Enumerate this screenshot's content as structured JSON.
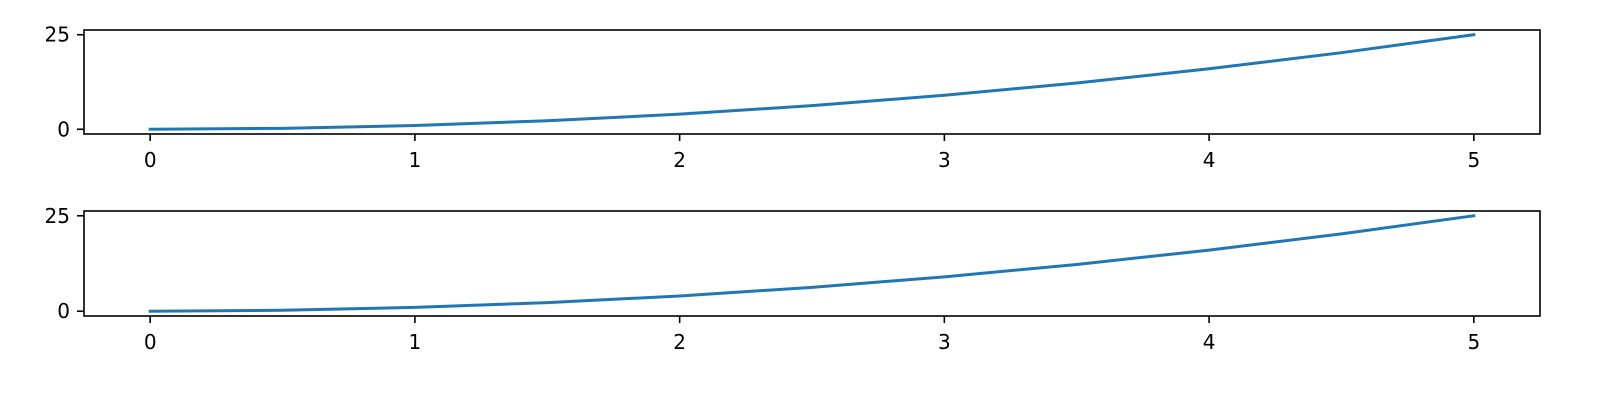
{
  "chart_data": [
    {
      "type": "line",
      "title": "",
      "xlabel": "",
      "ylabel": "",
      "xlim": [
        -0.25,
        5.25
      ],
      "ylim": [
        -1.25,
        26.25
      ],
      "xticks": [
        0,
        1,
        2,
        3,
        4,
        5
      ],
      "xtick_labels": [
        "0",
        "1",
        "2",
        "3",
        "4",
        "5"
      ],
      "yticks": [
        0,
        25
      ],
      "ytick_labels": [
        "0",
        "25"
      ],
      "grid": false,
      "legend": "none",
      "series": [
        {
          "color": "#1f77b4",
          "x": [
            0,
            0.5,
            1,
            1.5,
            2,
            2.5,
            3,
            3.5,
            4,
            4.5,
            5
          ],
          "y": [
            0,
            0.25,
            1,
            2.25,
            4,
            6.25,
            9,
            12.25,
            16,
            20.25,
            25
          ]
        }
      ]
    },
    {
      "type": "line",
      "title": "",
      "xlabel": "",
      "ylabel": "",
      "xlim": [
        -0.25,
        5.25
      ],
      "ylim": [
        -1.25,
        26.25
      ],
      "xticks": [
        0,
        1,
        2,
        3,
        4,
        5
      ],
      "xtick_labels": [
        "0",
        "1",
        "2",
        "3",
        "4",
        "5"
      ],
      "yticks": [
        0,
        25
      ],
      "ytick_labels": [
        "0",
        "25"
      ],
      "grid": false,
      "legend": "none",
      "series": [
        {
          "color": "#1f77b4",
          "x": [
            0,
            0.5,
            1,
            1.5,
            2,
            2.5,
            3,
            3.5,
            4,
            4.5,
            5
          ],
          "y": [
            0,
            0.25,
            1,
            2.25,
            4,
            6.25,
            9,
            12.25,
            16,
            20.25,
            25
          ]
        }
      ]
    }
  ]
}
